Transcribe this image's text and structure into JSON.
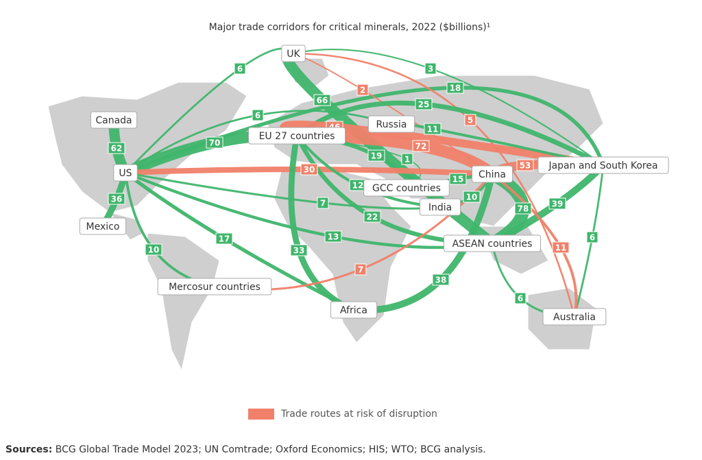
{
  "title": "Major trade corridors for critical minerals, 2022 ($billions)¹",
  "colors": {
    "normal": "#3fb56b",
    "risk": "#f08069",
    "land": "#cfcfcf"
  },
  "nodes": [
    "UK",
    "Canada",
    "US",
    "Mexico",
    "EU 27 countries",
    "Russia",
    "GCC countries",
    "India",
    "China",
    "Japan and South Korea",
    "ASEAN countries",
    "Mercosur countries",
    "Africa",
    "Australia"
  ],
  "routes": [
    {
      "from": "UK",
      "to": "US",
      "value": 6,
      "risk": false
    },
    {
      "from": "UK",
      "to": "Japan and South Korea",
      "value": 3,
      "risk": false
    },
    {
      "from": "US",
      "to": "Japan and South Korea",
      "value": 18,
      "risk": false
    },
    {
      "from": "UK",
      "to": "China",
      "value": 2,
      "risk": true
    },
    {
      "from": "UK",
      "to": "ASEAN countries",
      "value": 66,
      "risk": false
    },
    {
      "from": "UK",
      "to": "Australia",
      "value": 5,
      "risk": true
    },
    {
      "from": "EU 27 countries",
      "to": "Japan and South Korea",
      "value": 25,
      "risk": false
    },
    {
      "from": "US",
      "to": "Russia",
      "value": 6,
      "risk": false
    },
    {
      "from": "Canada",
      "to": "US",
      "value": 62,
      "risk": false
    },
    {
      "from": "US",
      "to": "EU 27 countries",
      "value": 70,
      "risk": false
    },
    {
      "from": "EU 27 countries",
      "to": "Japan and South Korea",
      "value": 46,
      "risk": true
    },
    {
      "from": "EU 27 countries",
      "to": "China",
      "value": 72,
      "risk": true
    },
    {
      "from": "Russia",
      "to": "Japan and South Korea",
      "value": 11,
      "risk": false
    },
    {
      "from": "EU 27 countries",
      "to": "India",
      "value": 19,
      "risk": false
    },
    {
      "from": "EU 27 countries",
      "to": "GCC countries",
      "value": 1,
      "risk": false
    },
    {
      "from": "US",
      "to": "China",
      "value": 30,
      "risk": true
    },
    {
      "from": "China",
      "to": "Japan and South Korea",
      "value": 53,
      "risk": true
    },
    {
      "from": "EU 27 countries",
      "to": "India",
      "value": 12,
      "risk": false
    },
    {
      "from": "GCC countries",
      "to": "China",
      "value": 15,
      "risk": false
    },
    {
      "from": "US",
      "to": "India",
      "value": 7,
      "risk": false
    },
    {
      "from": "India",
      "to": "China",
      "value": 10,
      "risk": false
    },
    {
      "from": "EU 27 countries",
      "to": "ASEAN countries",
      "value": 22,
      "risk": false
    },
    {
      "from": "US",
      "to": "ASEAN countries",
      "value": 13,
      "risk": false
    },
    {
      "from": "EU 27 countries",
      "to": "Africa",
      "value": 33,
      "risk": false
    },
    {
      "from": "China",
      "to": "ASEAN countries",
      "value": 78,
      "risk": false
    },
    {
      "from": "Japan and South Korea",
      "to": "ASEAN countries",
      "value": 39,
      "risk": false
    },
    {
      "from": "Japan and South Korea",
      "to": "Australia",
      "value": 6,
      "risk": false
    },
    {
      "from": "China",
      "to": "Australia",
      "value": 11,
      "risk": true
    },
    {
      "from": "US",
      "to": "Mercosur countries",
      "value": 10,
      "risk": false
    },
    {
      "from": "US",
      "to": "Africa",
      "value": 17,
      "risk": false
    },
    {
      "from": "Mercosur countries",
      "to": "China",
      "value": 7,
      "risk": true
    },
    {
      "from": "Africa",
      "to": "China",
      "value": 38,
      "risk": false
    },
    {
      "from": "ASEAN countries",
      "to": "Australia",
      "value": 6,
      "risk": false
    },
    {
      "from": "US",
      "to": "Mexico",
      "value": 36,
      "risk": false
    }
  ],
  "legend": "Trade routes at risk of disruption",
  "sources_label": "Sources:",
  "sources_text": "BCG Global Trade Model 2023; UN Comtrade; Oxford Economics; HIS; WTO; BCG analysis."
}
